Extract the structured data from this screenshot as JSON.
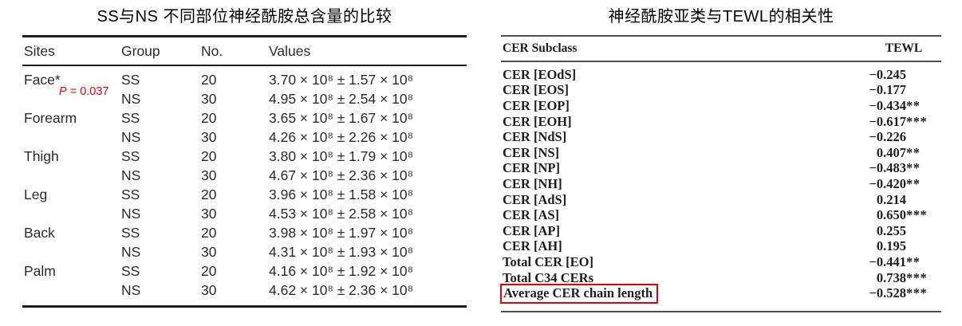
{
  "colors": {
    "accent_red": "#ee0000",
    "table_line_left": "#1c1c1c",
    "table_line_right": "#4d4d4d",
    "text": "#2b2b2b"
  },
  "left_table": {
    "title": "SS与NS 不同部位神经酰胺总含量的比较",
    "columns": [
      "Sites",
      "Group",
      "No.",
      "Values"
    ],
    "p_note": {
      "label": "P",
      "rest": " = 0.037"
    },
    "rows": [
      {
        "site": "Face*",
        "has_p_note": true,
        "group": "SS",
        "no": "20",
        "value": "3.70 × 10⁸ ± 1.57 × 10⁸"
      },
      {
        "site": "",
        "has_p_note": false,
        "group": "NS",
        "no": "30",
        "value": "4.95 × 10⁸ ± 2.54 × 10⁸"
      },
      {
        "site": "Forearm",
        "has_p_note": false,
        "group": "SS",
        "no": "20",
        "value": "3.65 × 10⁸ ± 1.67 × 10⁸"
      },
      {
        "site": "",
        "has_p_note": false,
        "group": "NS",
        "no": "30",
        "value": "4.26 × 10⁸ ± 2.26 × 10⁸"
      },
      {
        "site": "Thigh",
        "has_p_note": false,
        "group": "SS",
        "no": "20",
        "value": "3.80 × 10⁸ ± 1.79 × 10⁸"
      },
      {
        "site": "",
        "has_p_note": false,
        "group": "NS",
        "no": "30",
        "value": "4.67 × 10⁸ ± 2.36 × 10⁸"
      },
      {
        "site": "Leg",
        "has_p_note": false,
        "group": "SS",
        "no": "20",
        "value": "3.96 × 10⁸ ± 1.58 × 10⁸"
      },
      {
        "site": "",
        "has_p_note": false,
        "group": "NS",
        "no": "30",
        "value": "4.53 × 10⁸ ± 2.58 × 10⁸"
      },
      {
        "site": "Back",
        "has_p_note": false,
        "group": "SS",
        "no": "20",
        "value": "3.98 × 10⁸ ± 1.97 × 10⁸"
      },
      {
        "site": "",
        "has_p_note": false,
        "group": "NS",
        "no": "30",
        "value": "4.31 × 10⁸ ± 1.93 × 10⁸"
      },
      {
        "site": "Palm",
        "has_p_note": false,
        "group": "SS",
        "no": "20",
        "value": "4.16 × 10⁸ ± 1.92 × 10⁸"
      },
      {
        "site": "",
        "has_p_note": false,
        "group": "NS",
        "no": "30",
        "value": "4.62 × 10⁸ ± 2.36 × 10⁸"
      }
    ]
  },
  "right_table": {
    "title": "神经酰胺亚类与TEWL的相关性",
    "columns": [
      "CER Subclass",
      "TEWL"
    ],
    "rows": [
      {
        "subclass": "CER [EOdS]",
        "num": "−0.245",
        "stars": "",
        "highlighted": false
      },
      {
        "subclass": "CER [EOS]",
        "num": "−0.177",
        "stars": "",
        "highlighted": false
      },
      {
        "subclass": "CER [EOP]",
        "num": "−0.434",
        "stars": "**",
        "highlighted": false
      },
      {
        "subclass": "CER [EOH]",
        "num": "−0.617",
        "stars": "***",
        "highlighted": false
      },
      {
        "subclass": "CER [NdS]",
        "num": "−0.226",
        "stars": "",
        "highlighted": false
      },
      {
        "subclass": "CER [NS]",
        "num": "0.407",
        "stars": "**",
        "highlighted": false
      },
      {
        "subclass": "CER [NP]",
        "num": "−0.483",
        "stars": "**",
        "highlighted": false
      },
      {
        "subclass": "CER [NH]",
        "num": "−0.420",
        "stars": "**",
        "highlighted": false
      },
      {
        "subclass": "CER [AdS]",
        "num": "0.214",
        "stars": "",
        "highlighted": false
      },
      {
        "subclass": "CER [AS]",
        "num": "0.650",
        "stars": "***",
        "highlighted": false
      },
      {
        "subclass": "CER [AP]",
        "num": "0.255",
        "stars": "",
        "highlighted": false
      },
      {
        "subclass": "CER [AH]",
        "num": "0.195",
        "stars": "",
        "highlighted": false
      },
      {
        "subclass": "Total CER [EO]",
        "num": "−0.441",
        "stars": "**",
        "highlighted": false
      },
      {
        "subclass": "Total C34 CERs",
        "num": "0.738",
        "stars": "***",
        "highlighted": false
      },
      {
        "subclass": "Average CER chain length",
        "num": "−0.528",
        "stars": "***",
        "highlighted": true
      }
    ]
  }
}
